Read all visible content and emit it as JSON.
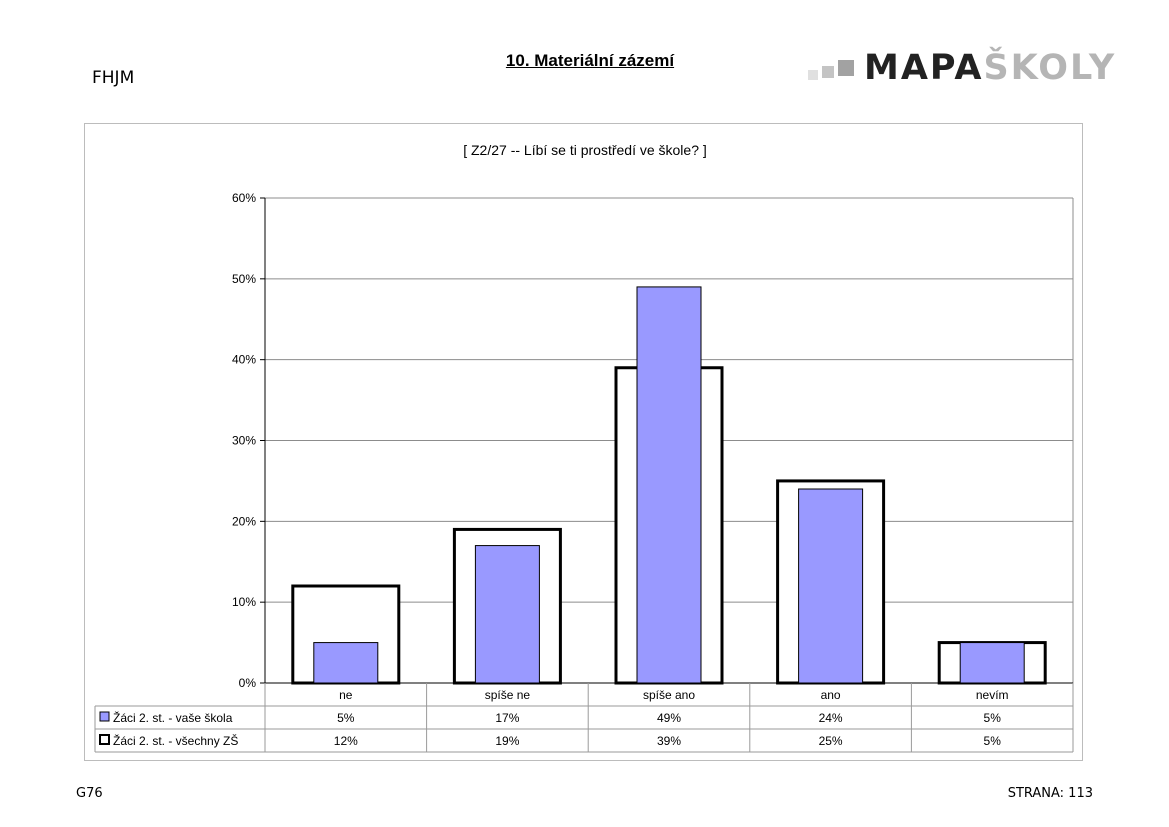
{
  "header": {
    "school_code": "FHJM",
    "page_title": "10. Materiální zázemí",
    "logo": {
      "dark": "MAPA",
      "light": "ŠKOLY"
    }
  },
  "footer": {
    "left": "G76",
    "right": "STRANA: 113"
  },
  "colors": {
    "series1_fill": "#9999ff",
    "series2_fill": "#ffffff",
    "series2_stroke": "#000000"
  },
  "chart_data": {
    "type": "bar",
    "title": "[ Z2/27 -- Líbí se ti prostředí ve škole? ]",
    "categories": [
      "ne",
      "spíše ne",
      "spíše ano",
      "ano",
      "nevím"
    ],
    "series": [
      {
        "name": "Žáci 2. st. - vaše škola",
        "values": [
          5,
          17,
          49,
          24,
          5
        ],
        "labels": [
          "5%",
          "17%",
          "49%",
          "24%",
          "5%"
        ]
      },
      {
        "name": "Žáci 2. st. - všechny ZŠ",
        "values": [
          12,
          19,
          39,
          25,
          5
        ],
        "labels": [
          "12%",
          "19%",
          "39%",
          "25%",
          "5%"
        ]
      }
    ],
    "ylim": [
      0,
      60
    ],
    "yticks": [
      "0%",
      "10%",
      "20%",
      "30%",
      "40%",
      "50%",
      "60%"
    ],
    "grid": true,
    "legend": "data-table"
  }
}
